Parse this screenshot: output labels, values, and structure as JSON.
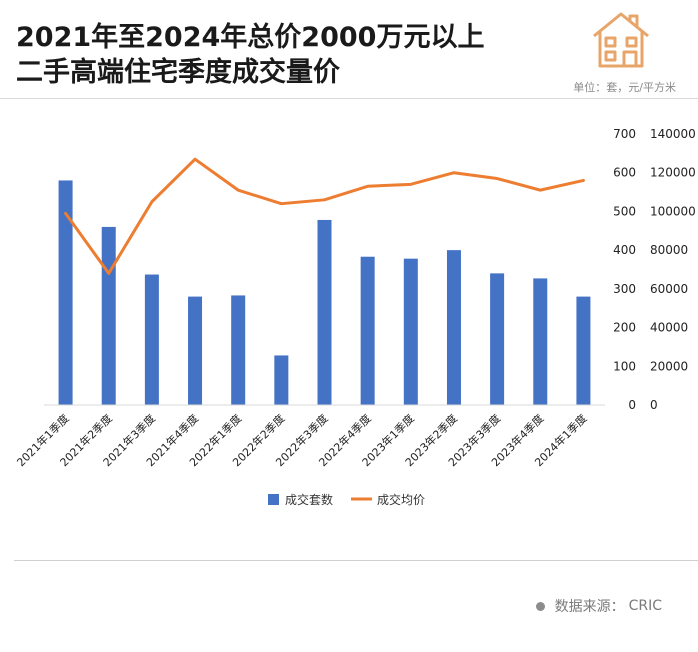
{
  "title": {
    "line1": "2021年至2024年总价2000万元以上",
    "line2": "二手高端住宅季度成交量价"
  },
  "unit_label": "单位：套，元/平方米",
  "source": {
    "prefix": "数据来源：",
    "name": "CRIC"
  },
  "colors": {
    "bar": "#4472C4",
    "line": "#ED7D31",
    "icon": "#E8A56A"
  },
  "chart_data": {
    "type": "bar",
    "title": "2021年至2024年总价2000万元以上二手高端住宅季度成交量价",
    "categories": [
      "2021年1季度",
      "2021年2季度",
      "2021年3季度",
      "2021年4季度",
      "2022年1季度",
      "2022年2季度",
      "2022年3季度",
      "2022年4季度",
      "2023年1季度",
      "2023年2季度",
      "2023年3季度",
      "2023年4季度",
      "2024年1季度"
    ],
    "series": [
      {
        "name": "成交套数",
        "type": "bar",
        "axis": "left",
        "values": [
          580,
          460,
          337,
          280,
          283,
          128,
          478,
          383,
          378,
          400,
          340,
          327,
          280
        ]
      },
      {
        "name": "成交均价",
        "type": "line",
        "axis": "right",
        "values": [
          99000,
          68000,
          105000,
          127000,
          111000,
          104000,
          106000,
          113000,
          114000,
          120000,
          117000,
          111000,
          116000
        ]
      }
    ],
    "y_left": {
      "ylim": [
        0,
        700
      ],
      "ticks": [
        "0",
        "100",
        "200",
        "300",
        "400",
        "500",
        "600",
        "700"
      ]
    },
    "y_right": {
      "ylim": [
        0,
        140000
      ],
      "ticks": [
        "0",
        "20000",
        "40000",
        "60000",
        "80000",
        "100000",
        "120000",
        "140000"
      ]
    },
    "legend": {
      "position": "bottom",
      "entries": [
        "成交套数",
        "成交均价"
      ]
    },
    "grid": false
  }
}
